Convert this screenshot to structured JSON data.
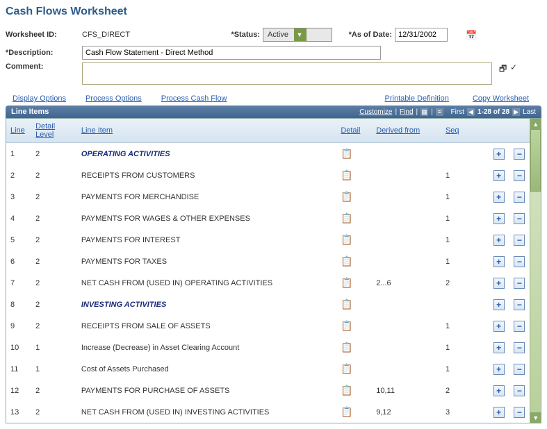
{
  "page_title": "Cash Flows Worksheet",
  "form": {
    "worksheet_id_label": "Worksheet ID:",
    "worksheet_id_value": "CFS_DIRECT",
    "status_label": "*Status:",
    "status_value": "Active",
    "asof_label": "*As of Date:",
    "asof_value": "12/31/2002",
    "description_label": "*Description:",
    "description_value": "Cash Flow Statement - Direct Method",
    "comment_label": "Comment:"
  },
  "links": {
    "display_options": "Display Options",
    "process_options": "Process Options",
    "process_cash_flow": "Process Cash Flow",
    "printable_definition": "Printable Definition",
    "copy_worksheet": "Copy Worksheet"
  },
  "grid": {
    "title": "Line Items",
    "tools": {
      "customize": "Customize",
      "find": "Find",
      "first": "First",
      "range": "1-28 of 28",
      "last": "Last"
    },
    "columns": {
      "line": "Line",
      "detail_level": "Detail Level",
      "line_item": "Line Item",
      "detail": "Detail",
      "derived_from": "Derived from",
      "seq": "Seq"
    },
    "rows": [
      {
        "line": "1",
        "detail_level": "2",
        "line_item": "OPERATING ACTIVITIES",
        "bold": true,
        "derived_from": "",
        "seq": ""
      },
      {
        "line": "2",
        "detail_level": "2",
        "line_item": "RECEIPTS FROM CUSTOMERS",
        "bold": false,
        "derived_from": "",
        "seq": "1"
      },
      {
        "line": "3",
        "detail_level": "2",
        "line_item": "PAYMENTS FOR MERCHANDISE",
        "bold": false,
        "derived_from": "",
        "seq": "1"
      },
      {
        "line": "4",
        "detail_level": "2",
        "line_item": "PAYMENTS FOR WAGES & OTHER EXPENSES",
        "bold": false,
        "derived_from": "",
        "seq": "1"
      },
      {
        "line": "5",
        "detail_level": "2",
        "line_item": "PAYMENTS FOR INTEREST",
        "bold": false,
        "derived_from": "",
        "seq": "1"
      },
      {
        "line": "6",
        "detail_level": "2",
        "line_item": "PAYMENTS FOR TAXES",
        "bold": false,
        "derived_from": "",
        "seq": "1"
      },
      {
        "line": "7",
        "detail_level": "2",
        "line_item": "NET CASH FROM (USED IN) OPERATING ACTIVITIES",
        "bold": false,
        "derived_from": "2...6",
        "seq": "2"
      },
      {
        "line": "8",
        "detail_level": "2",
        "line_item": "INVESTING ACTIVITIES",
        "bold": true,
        "derived_from": "",
        "seq": ""
      },
      {
        "line": "9",
        "detail_level": "2",
        "line_item": "RECEIPTS FROM SALE OF ASSETS",
        "bold": false,
        "derived_from": "",
        "seq": "1"
      },
      {
        "line": "10",
        "detail_level": "1",
        "line_item": "Increase (Decrease) in Asset Clearing Account",
        "bold": false,
        "derived_from": "",
        "seq": "1"
      },
      {
        "line": "11",
        "detail_level": "1",
        "line_item": "Cost of Assets Purchased",
        "bold": false,
        "derived_from": "",
        "seq": "1"
      },
      {
        "line": "12",
        "detail_level": "2",
        "line_item": "PAYMENTS FOR PURCHASE OF ASSETS",
        "bold": false,
        "derived_from": "10,11",
        "seq": "2"
      },
      {
        "line": "13",
        "detail_level": "2",
        "line_item": "NET CASH FROM (USED IN) INVESTING ACTIVITIES",
        "bold": false,
        "derived_from": "9,12",
        "seq": "3"
      }
    ]
  },
  "colors": {
    "link": "#2a5db0",
    "header_bg1": "#5d7fa6",
    "header_bg2": "#41658f",
    "th_bg1": "#eaf1f7",
    "th_bg2": "#d5e4f0"
  }
}
